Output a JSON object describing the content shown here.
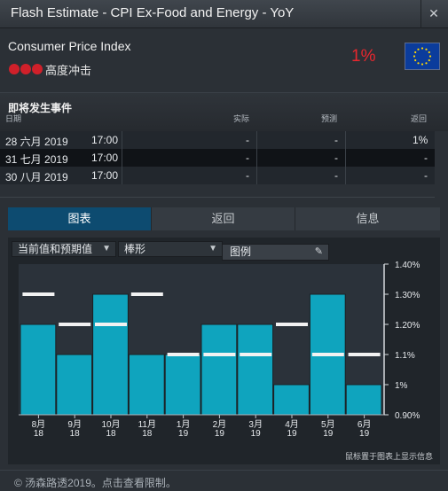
{
  "window": {
    "title": "Flash Estimate - CPI Ex-Food and Energy - YoY",
    "close_glyph": "✕"
  },
  "header": {
    "indicator": "Consumer Price Index",
    "impact_label": "高度冲击",
    "impact_dots": 3,
    "impact_color": "#d0202a",
    "value": "1%",
    "flag_icon": "eu-flag-icon"
  },
  "events": {
    "title": "即将发生事件",
    "columns": {
      "date": "日期",
      "actual": "实际",
      "forecast": "预测",
      "previous": "返回"
    },
    "rows": [
      {
        "date": "28 六月 2019",
        "time": "17:00",
        "actual": "-",
        "forecast": "-",
        "previous": "1%"
      },
      {
        "date": "31 七月 2019",
        "time": "17:00",
        "actual": "-",
        "forecast": "-",
        "previous": "-"
      },
      {
        "date": "30 八月 2019",
        "time": "17:00",
        "actual": "-",
        "forecast": "-",
        "previous": "-"
      }
    ]
  },
  "tabs": [
    {
      "label": "图表",
      "active": true
    },
    {
      "label": "返回",
      "active": false
    },
    {
      "label": "信息",
      "active": false
    }
  ],
  "controls": {
    "series_select": "当前值和预期值",
    "type_select": "棒形",
    "legend_label": "图例"
  },
  "chart_hint": "鼠标置于图表上显示信息",
  "footer": {
    "copyright": "© 汤森路透2019。点击查看限制。"
  },
  "colors": {
    "bar": "#0fa4be",
    "forecast_marker": "#f2f2f2",
    "accent": "#0d4b70"
  },
  "chart_data": {
    "type": "bar",
    "categories": [
      "8月\n18",
      "9月\n18",
      "10月\n18",
      "11月\n18",
      "1月\n19",
      "2月\n19",
      "3月\n19",
      "4月\n19",
      "5月\n19",
      "6月\n19"
    ],
    "category_lines": [
      [
        "8月",
        "18"
      ],
      [
        "9月",
        "18"
      ],
      [
        "10月",
        "18"
      ],
      [
        "11月",
        "18"
      ],
      [
        "1月",
        "19"
      ],
      [
        "2月",
        "19"
      ],
      [
        "3月",
        "19"
      ],
      [
        "4月",
        "19"
      ],
      [
        "5月",
        "19"
      ],
      [
        "6月",
        "19"
      ]
    ],
    "series": [
      {
        "name": "",
        "values": [
          1.2,
          1.1,
          1.3,
          1.1,
          1.1,
          1.2,
          1.2,
          1.0,
          1.3,
          1.0
        ]
      },
      {
        "name": "",
        "values": [
          1.3,
          1.2,
          1.2,
          1.3,
          1.1,
          1.1,
          1.1,
          1.2,
          1.1,
          1.1
        ]
      }
    ],
    "ylim": [
      0.9,
      1.4
    ],
    "yticks": [
      {
        "v": 0.9,
        "label": "0.90%"
      },
      {
        "v": 1.0,
        "label": "1%"
      },
      {
        "v": 1.1,
        "label": "1.1%"
      },
      {
        "v": 1.2,
        "label": "1.20%"
      },
      {
        "v": 1.3,
        "label": "1.30%"
      },
      {
        "v": 1.4,
        "label": "1.40%"
      }
    ],
    "y_axis_position": "right",
    "grid": false,
    "title": "",
    "xlabel": "",
    "ylabel": ""
  }
}
